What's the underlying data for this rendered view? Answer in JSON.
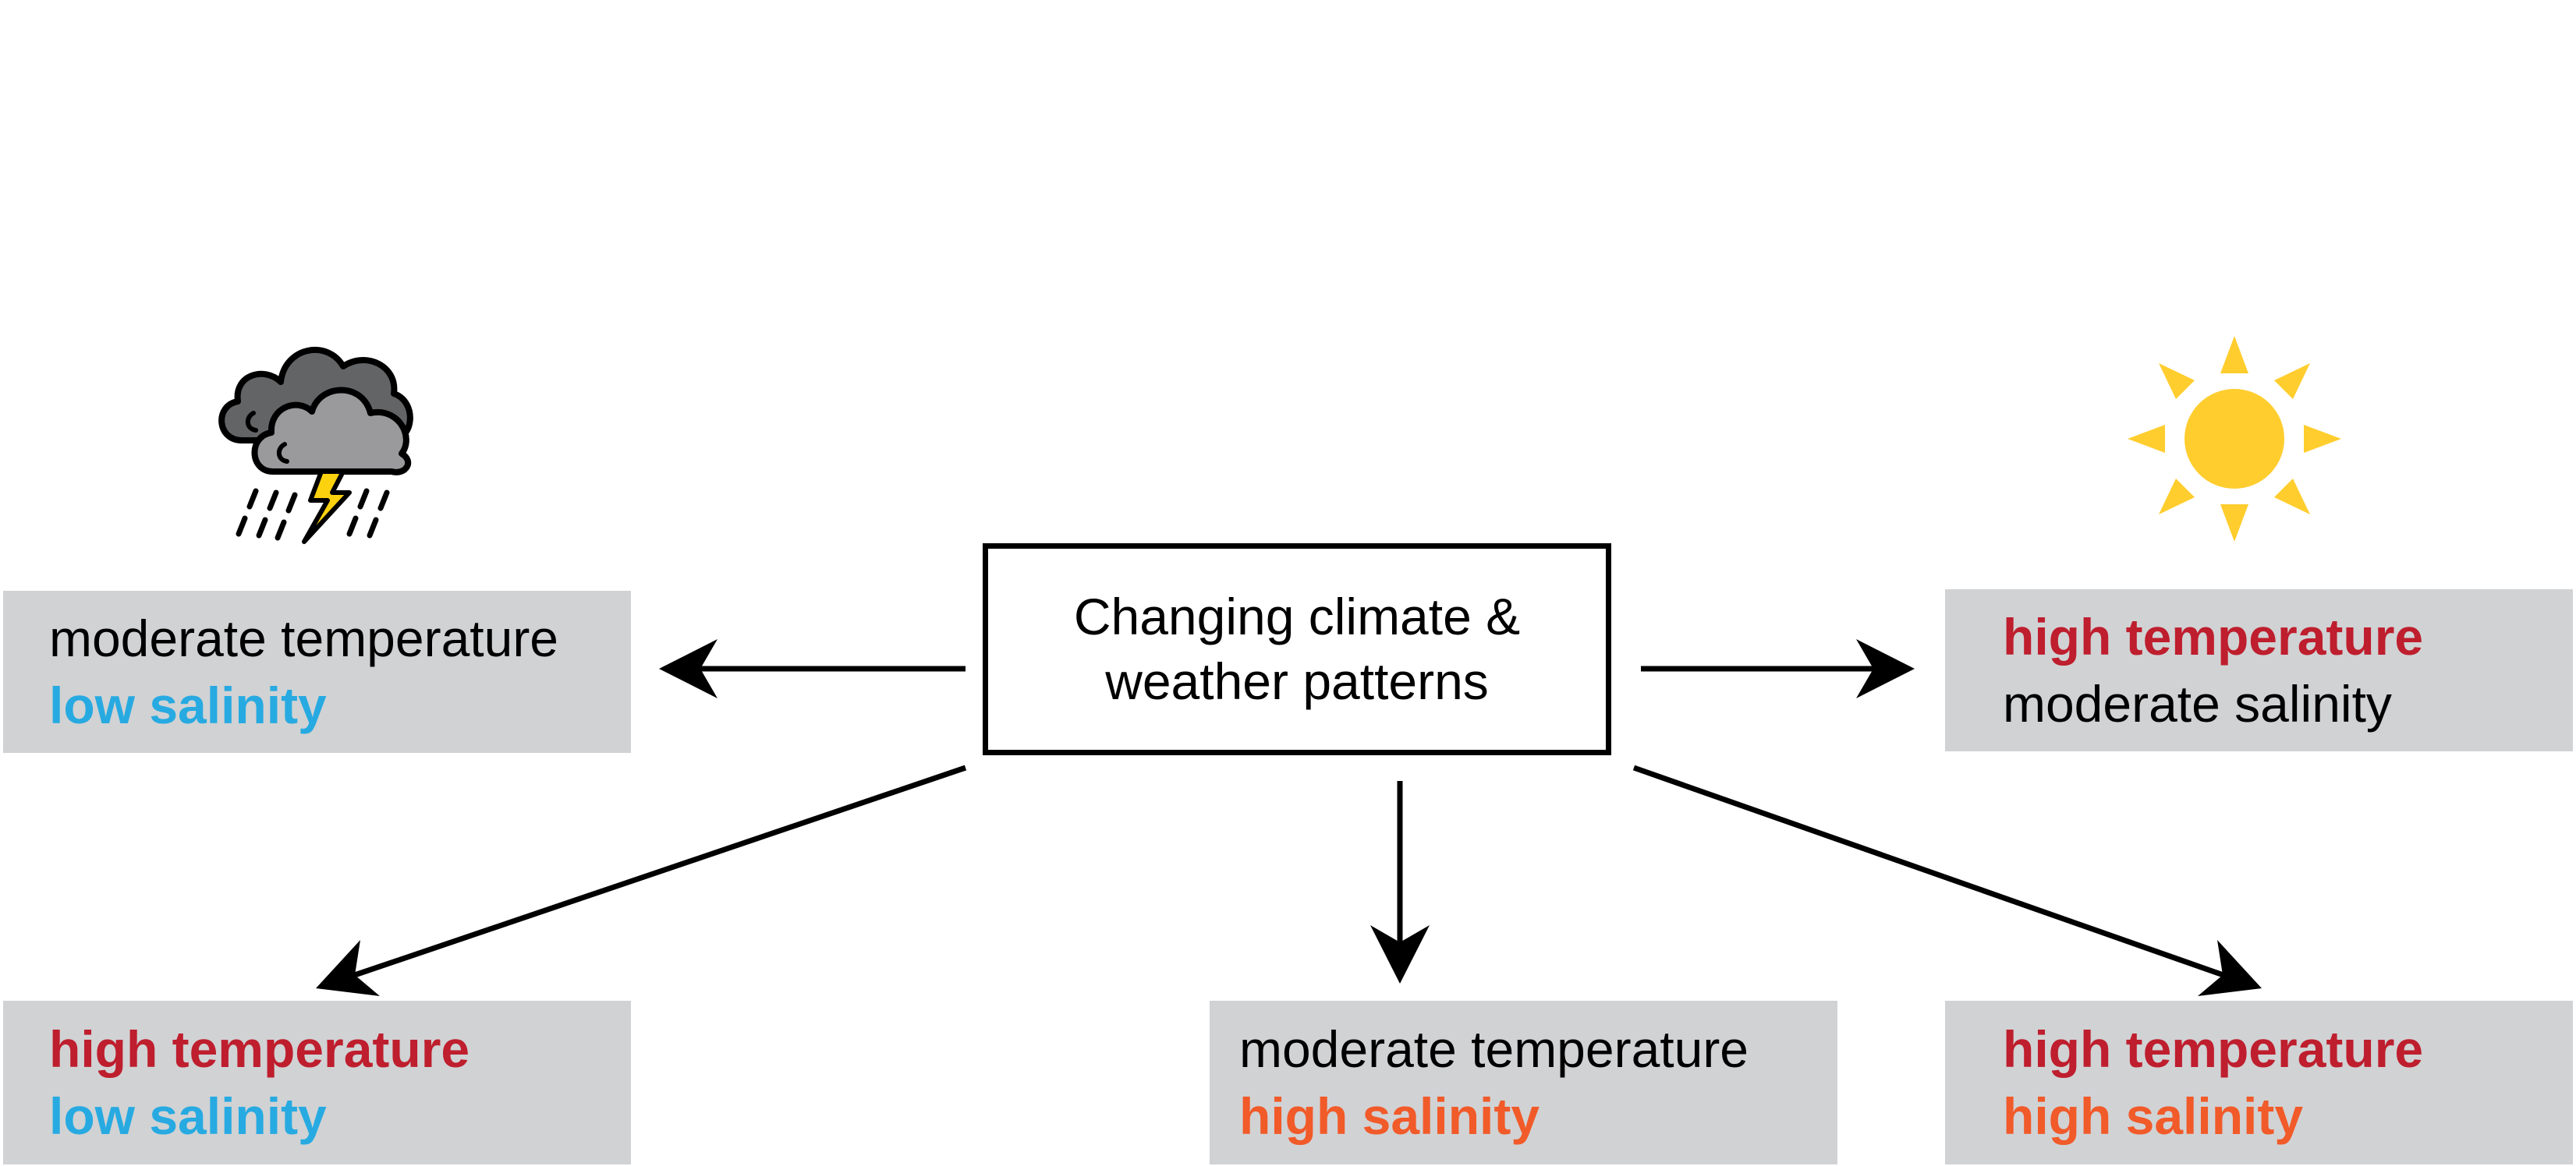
{
  "center": {
    "line1": "Changing climate &",
    "line2": "weather patterns"
  },
  "outcomes": {
    "left": {
      "temperature": "moderate temperature",
      "salinity": "low salinity",
      "icon": "storm-cloud-icon"
    },
    "right": {
      "temperature": "high temperature",
      "salinity": "moderate salinity",
      "icon": "sun-icon"
    },
    "bottom_left": {
      "temperature": "high temperature",
      "salinity": "low salinity"
    },
    "bottom_center": {
      "temperature": "moderate temperature",
      "salinity": "high salinity"
    },
    "bottom_right": {
      "temperature": "high temperature",
      "salinity": "high salinity"
    }
  },
  "colors": {
    "high_temperature": "#be1e2d",
    "low_salinity": "#27aae1",
    "high_salinity": "#f15a29",
    "moderate": "#000000",
    "box_fill": "#d1d2d4",
    "sun": "#ffcd2e",
    "cloud_dark": "#636466",
    "cloud_light": "#9a9a9c",
    "lightning": "#fcd20f"
  }
}
